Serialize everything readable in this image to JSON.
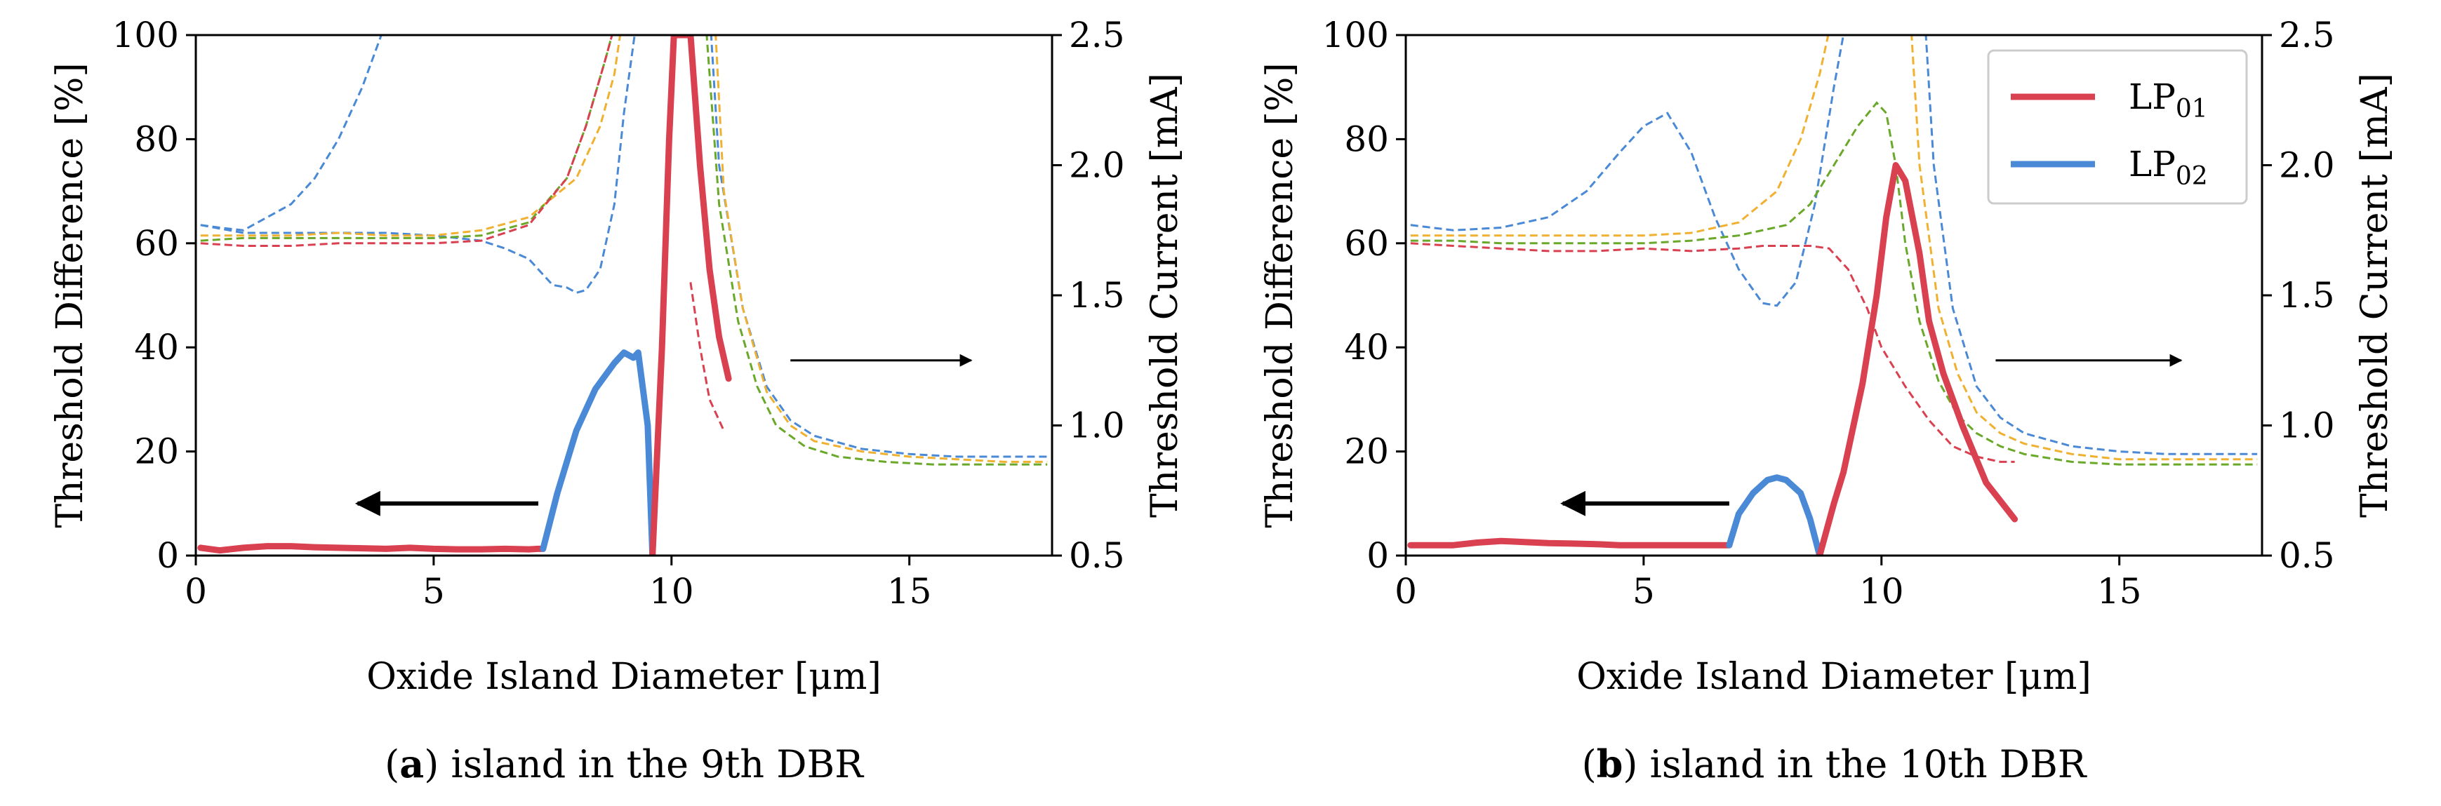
{
  "chart_data": [
    {
      "type": "line",
      "caption_tag": "a",
      "caption_text": ") island in the 9th DBR",
      "caption_open": "(",
      "xlabel": "Oxide Island Diameter [μm]",
      "ylabel_left": "Threshold Difference [%]",
      "ylabel_right": "Threshold Current [mA]",
      "xlim": [
        0,
        18
      ],
      "ylim_left": [
        0,
        100
      ],
      "ylim_right": [
        0.5,
        2.5
      ],
      "x_ticks": [
        "0",
        "5",
        "10",
        "15"
      ],
      "y_ticks_left": [
        "0",
        "20",
        "40",
        "60",
        "80",
        "100"
      ],
      "y_ticks_right": [
        "0.5",
        "1.0",
        "1.5",
        "2.0",
        "2.5"
      ],
      "colors": {
        "LP01": "#d94050",
        "LP02": "#4a89d6",
        "orange": "#f0b030",
        "green": "#6aa82a"
      },
      "arrows": [
        {
          "axis": "left",
          "from": [
            7.2,
            10
          ],
          "to": [
            3.4,
            10
          ]
        },
        {
          "axis": "right",
          "from": [
            12.5,
            1.25
          ],
          "to": [
            16.3,
            1.25
          ]
        }
      ],
      "series_left": [
        {
          "name": "LP01",
          "color": "#d94050",
          "x": [
            0.1,
            0.5,
            1,
            1.5,
            2,
            2.5,
            3,
            3.5,
            4,
            4.5,
            5,
            5.5,
            6,
            6.5,
            7,
            7.2,
            7.3
          ],
          "y": [
            1.5,
            1,
            1.5,
            1.8,
            1.8,
            1.6,
            1.5,
            1.4,
            1.3,
            1.5,
            1.3,
            1.2,
            1.2,
            1.3,
            1.2,
            1.3,
            1.3
          ]
        },
        {
          "name": "LP02",
          "color": "#4a89d6",
          "x": [
            7.3,
            7.6,
            8.0,
            8.4,
            8.8,
            9.0,
            9.2,
            9.3,
            9.5,
            9.6
          ],
          "y": [
            1.3,
            12,
            24,
            32,
            37,
            39,
            38,
            39,
            25,
            0
          ]
        },
        {
          "name": "LP01",
          "color": "#d94050",
          "x": [
            9.6,
            9.8,
            9.95,
            10.05,
            10.1,
            10.25,
            10.4,
            10.6,
            10.8,
            11.0,
            11.2
          ],
          "y": [
            0,
            40,
            80,
            100,
            100,
            100,
            100,
            75,
            55,
            42,
            34
          ]
        }
      ],
      "series_right": [
        {
          "color": "#4a89d6",
          "x": [
            0.1,
            1,
            2,
            3,
            4,
            5,
            6,
            6.5,
            7,
            7.5,
            7.8,
            8.0,
            8.2,
            8.5,
            8.8,
            9.0,
            9.3
          ],
          "y": [
            1.77,
            1.74,
            1.74,
            1.74,
            1.74,
            1.73,
            1.71,
            1.68,
            1.64,
            1.54,
            1.53,
            1.51,
            1.52,
            1.6,
            1.85,
            2.2,
            2.6
          ]
        },
        {
          "color": "#4a89d6",
          "x": [
            0.1,
            0.5,
            1,
            1.5,
            2,
            2.5,
            3,
            3.5,
            3.9,
            4.1
          ],
          "y": [
            1.77,
            1.76,
            1.75,
            1.8,
            1.85,
            1.95,
            2.1,
            2.3,
            2.5,
            2.6
          ]
        },
        {
          "color": "#4a89d6",
          "x": [
            10.8,
            11,
            11.5,
            12,
            12.5,
            13,
            14,
            15,
            16,
            17,
            17.9
          ],
          "y": [
            2.6,
            2.0,
            1.45,
            1.15,
            1.02,
            0.96,
            0.91,
            0.89,
            0.88,
            0.88,
            0.88
          ]
        },
        {
          "color": "#f0b030",
          "x": [
            0.1,
            1,
            2,
            3,
            4,
            5,
            6,
            7,
            8,
            8.5,
            8.8,
            9.0
          ],
          "y": [
            1.73,
            1.73,
            1.73,
            1.74,
            1.73,
            1.73,
            1.75,
            1.8,
            1.95,
            2.15,
            2.35,
            2.6
          ]
        },
        {
          "color": "#f0b030",
          "x": [
            10.9,
            11.1,
            11.5,
            12,
            12.5,
            13,
            14,
            15,
            16,
            17,
            17.9
          ],
          "y": [
            2.6,
            1.9,
            1.45,
            1.13,
            1.0,
            0.94,
            0.9,
            0.88,
            0.87,
            0.86,
            0.86
          ]
        },
        {
          "color": "#6aa82a",
          "x": [
            0.1,
            1,
            2,
            3,
            4,
            5,
            6,
            7,
            7.8,
            8.2,
            8.6,
            8.9
          ],
          "y": [
            1.71,
            1.72,
            1.72,
            1.72,
            1.72,
            1.72,
            1.73,
            1.78,
            1.95,
            2.15,
            2.4,
            2.6
          ]
        },
        {
          "color": "#6aa82a",
          "x": [
            10.7,
            11.0,
            11.4,
            11.8,
            12.2,
            12.8,
            13.5,
            14.5,
            15.5,
            16.5,
            17.9
          ],
          "y": [
            2.6,
            1.85,
            1.4,
            1.15,
            1.0,
            0.92,
            0.88,
            0.86,
            0.85,
            0.85,
            0.85
          ]
        },
        {
          "color": "#d94050",
          "x": [
            0.1,
            1,
            2,
            3,
            4,
            5,
            6,
            7,
            7.8,
            8.2,
            8.6,
            8.9
          ],
          "y": [
            1.7,
            1.69,
            1.69,
            1.7,
            1.7,
            1.7,
            1.71,
            1.77,
            1.95,
            2.15,
            2.4,
            2.6
          ]
        },
        {
          "color": "#d94050",
          "x": [
            10.4,
            10.6,
            10.8,
            11.0,
            11.1
          ],
          "y": [
            1.55,
            1.3,
            1.1,
            1.02,
            0.98
          ]
        }
      ]
    },
    {
      "type": "line",
      "caption_tag": "b",
      "caption_text": ") island in the 10th DBR",
      "caption_open": "(",
      "xlabel": "Oxide Island Diameter [μm]",
      "ylabel_left": "Threshold Difference [%]",
      "ylabel_right": "Threshold Current [mA]",
      "xlim": [
        0,
        18
      ],
      "ylim_left": [
        0,
        100
      ],
      "ylim_right": [
        0.5,
        2.5
      ],
      "x_ticks": [
        "0",
        "5",
        "10",
        "15"
      ],
      "y_ticks_left": [
        "0",
        "20",
        "40",
        "60",
        "80",
        "100"
      ],
      "y_ticks_right": [
        "0.5",
        "1.0",
        "1.5",
        "2.0",
        "2.5"
      ],
      "legend": {
        "position": "top-right",
        "entries": [
          {
            "label": "LP",
            "sub": "01",
            "color": "#d94050"
          },
          {
            "label": "LP",
            "sub": "02",
            "color": "#4a89d6"
          }
        ]
      },
      "arrows": [
        {
          "axis": "left",
          "from": [
            6.8,
            10
          ],
          "to": [
            3.3,
            10
          ]
        },
        {
          "axis": "right",
          "from": [
            12.4,
            1.25
          ],
          "to": [
            16.3,
            1.25
          ]
        }
      ],
      "series_left": [
        {
          "name": "LP01",
          "color": "#d94050",
          "x": [
            0.1,
            0.5,
            1,
            1.5,
            2,
            2.5,
            3,
            3.5,
            4,
            4.5,
            5,
            5.5,
            6,
            6.5,
            6.8
          ],
          "y": [
            2,
            2,
            2,
            2.5,
            2.8,
            2.6,
            2.4,
            2.3,
            2.2,
            2,
            2,
            2,
            2,
            2,
            2
          ]
        },
        {
          "name": "LP02",
          "color": "#4a89d6",
          "x": [
            6.8,
            7.0,
            7.3,
            7.6,
            7.8,
            8.0,
            8.3,
            8.5,
            8.7
          ],
          "y": [
            2,
            8,
            12,
            14.5,
            15,
            14.5,
            12,
            7,
            0
          ]
        },
        {
          "name": "LP01",
          "color": "#d94050",
          "x": [
            8.7,
            9.0,
            9.2,
            9.6,
            9.9,
            10.1,
            10.3,
            10.5,
            10.8,
            11.0,
            11.3,
            11.7,
            12.2,
            12.8
          ],
          "y": [
            0,
            10,
            16,
            33,
            50,
            65,
            75,
            72,
            58,
            45,
            35,
            25,
            14,
            7
          ]
        }
      ],
      "series_right": [
        {
          "color": "#4a89d6",
          "x": [
            0.1,
            1,
            2,
            3,
            3.8,
            4.5,
            5.0,
            5.5,
            6.0,
            6.5,
            7.0,
            7.5,
            7.8,
            8.2,
            8.6,
            9.0,
            9.3
          ],
          "y": [
            1.77,
            1.75,
            1.76,
            1.8,
            1.9,
            2.05,
            2.15,
            2.2,
            2.05,
            1.8,
            1.6,
            1.47,
            1.46,
            1.55,
            1.85,
            2.3,
            2.6
          ]
        },
        {
          "color": "#4a89d6",
          "x": [
            10.9,
            11.1,
            11.5,
            12,
            12.5,
            13,
            14,
            15,
            16,
            17,
            17.9
          ],
          "y": [
            2.6,
            2.0,
            1.45,
            1.15,
            1.03,
            0.97,
            0.92,
            0.9,
            0.89,
            0.89,
            0.89
          ]
        },
        {
          "color": "#f0b030",
          "x": [
            0.1,
            1,
            2,
            3,
            4,
            5,
            6,
            7,
            7.8,
            8.3,
            8.7,
            9.0
          ],
          "y": [
            1.73,
            1.73,
            1.73,
            1.73,
            1.73,
            1.73,
            1.74,
            1.78,
            1.9,
            2.1,
            2.35,
            2.6
          ]
        },
        {
          "color": "#f0b030",
          "x": [
            10.6,
            10.8,
            11.2,
            11.6,
            12,
            12.5,
            13,
            14,
            15,
            16,
            17,
            17.9
          ],
          "y": [
            2.6,
            2.0,
            1.45,
            1.2,
            1.05,
            0.97,
            0.93,
            0.89,
            0.87,
            0.87,
            0.87,
            0.87
          ]
        },
        {
          "color": "#6aa82a",
          "x": [
            0.1,
            1,
            2,
            3,
            4,
            5,
            6,
            7,
            8,
            8.5,
            9.0,
            9.5,
            9.9,
            10.1,
            10.3,
            10.5,
            10.8,
            11.2,
            11.6,
            12.0,
            12.5,
            13,
            14,
            15,
            16,
            17,
            17.9
          ],
          "y": [
            1.71,
            1.71,
            1.7,
            1.7,
            1.7,
            1.7,
            1.71,
            1.73,
            1.77,
            1.85,
            2.0,
            2.15,
            2.24,
            2.2,
            2.0,
            1.7,
            1.4,
            1.17,
            1.04,
            0.97,
            0.92,
            0.89,
            0.86,
            0.85,
            0.85,
            0.85,
            0.85
          ]
        },
        {
          "color": "#d94050",
          "x": [
            0.1,
            1,
            2,
            3,
            4,
            5,
            6,
            7,
            7.5,
            8.0,
            8.5,
            8.9,
            9.3,
            9.7,
            10.0,
            10.5,
            11.0,
            11.5,
            12.0,
            12.5,
            12.8
          ],
          "y": [
            1.7,
            1.69,
            1.68,
            1.67,
            1.67,
            1.68,
            1.67,
            1.68,
            1.69,
            1.69,
            1.69,
            1.68,
            1.6,
            1.45,
            1.3,
            1.15,
            1.02,
            0.92,
            0.88,
            0.86,
            0.86
          ]
        }
      ]
    }
  ]
}
